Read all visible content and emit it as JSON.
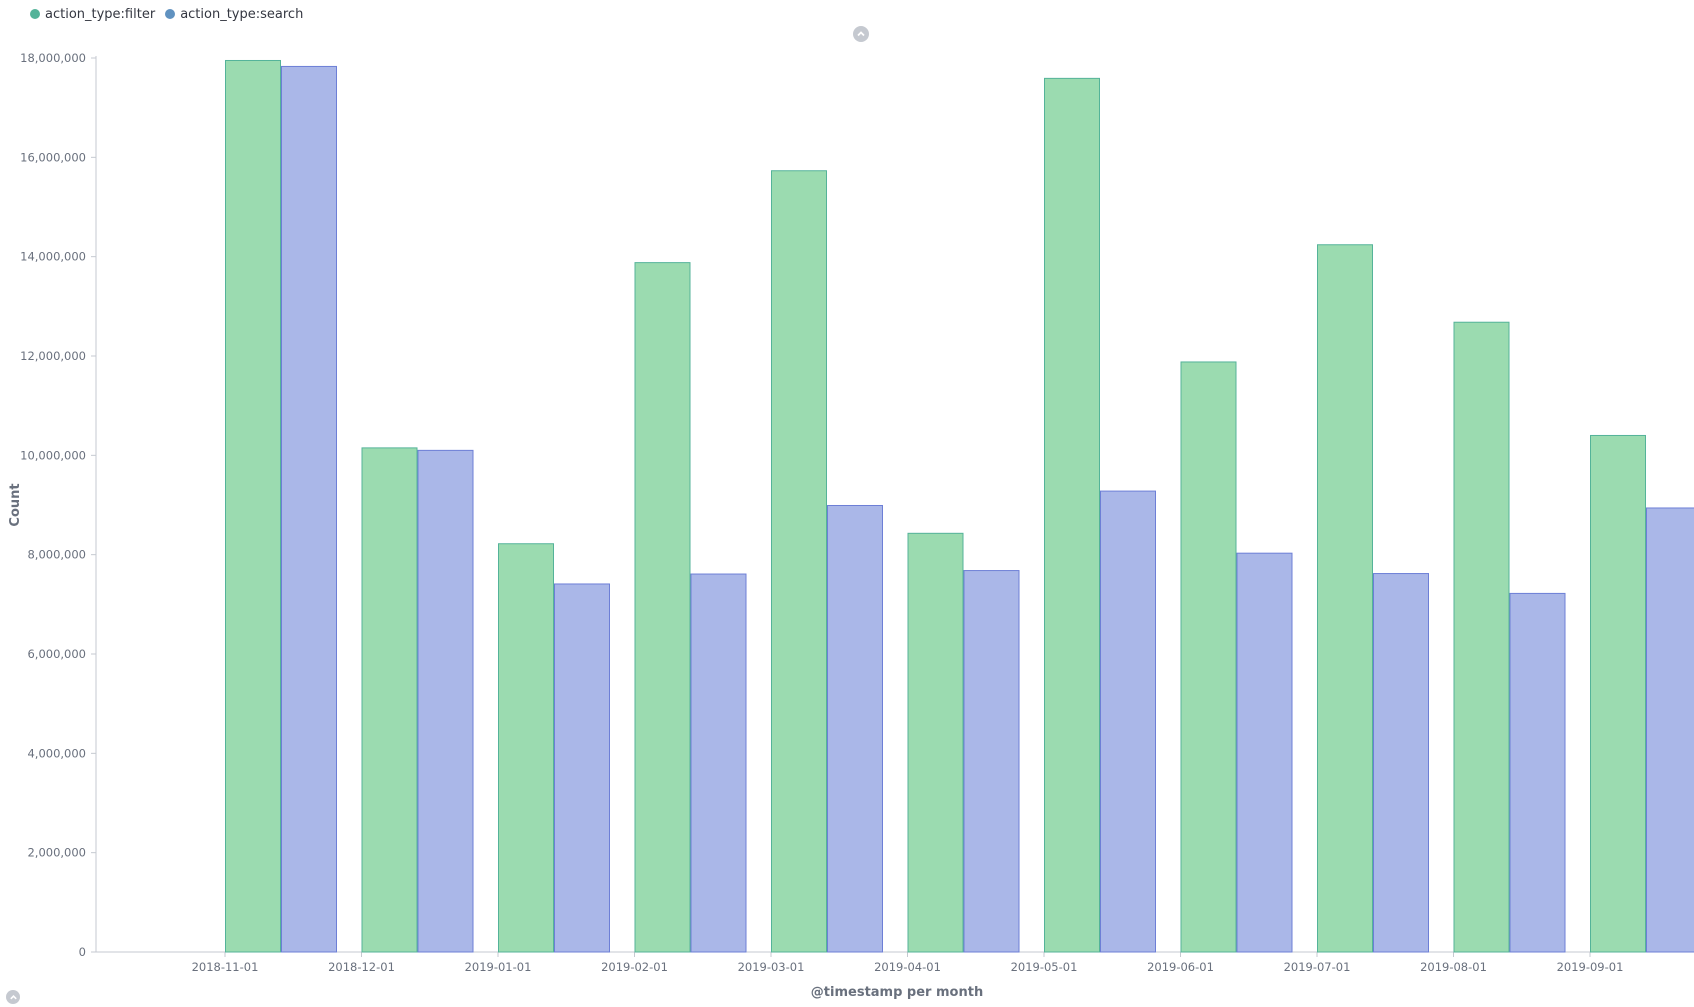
{
  "legend": {
    "items": [
      {
        "label": "action_type:filter",
        "color": "#54b399"
      },
      {
        "label": "action_type:search",
        "color": "#6092c0"
      }
    ]
  },
  "icons": {
    "collapse_top": "chevron-up-icon",
    "collapse_bottom": "chevron-up-icon"
  },
  "chart_data": {
    "type": "bar",
    "categories": [
      "2018-11-01",
      "2018-12-01",
      "2019-01-01",
      "2019-02-01",
      "2019-03-01",
      "2019-04-01",
      "2019-05-01",
      "2019-06-01",
      "2019-07-01",
      "2019-08-01",
      "2019-09-01"
    ],
    "series": [
      {
        "name": "action_type:filter",
        "fill": "#9bdbb0",
        "stroke": "#54b399",
        "values": [
          17950000,
          10150000,
          8220000,
          13880000,
          15730000,
          8430000,
          17590000,
          11880000,
          14240000,
          12680000,
          10400000
        ]
      },
      {
        "name": "action_type:search",
        "fill": "#aab7e8",
        "stroke": "#6d7fd6",
        "values": [
          17830000,
          10100000,
          7410000,
          7610000,
          8990000,
          7680000,
          9280000,
          8030000,
          7620000,
          7220000,
          8940000
        ]
      }
    ],
    "xlabel": "@timestamp per month",
    "ylabel": "Count",
    "ylim": [
      0,
      18000000
    ],
    "yticks": [
      0,
      2000000,
      4000000,
      6000000,
      8000000,
      10000000,
      12000000,
      14000000,
      16000000,
      18000000
    ],
    "grid": false,
    "legend": "top-left"
  }
}
